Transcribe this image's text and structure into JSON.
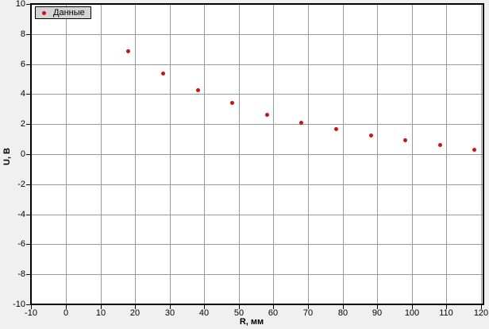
{
  "colors": {
    "page_bg": "#f0f0f0",
    "plot_bg": "#ffffff",
    "frame": "#000000",
    "grid": "#9b9b9b",
    "tick": "#000000",
    "text": "#000000",
    "legend_bg": "#d4d4d4",
    "marker": "#c81414"
  },
  "legend": {
    "label": "Данные",
    "marker_icon": "red-dot-icon"
  },
  "chart_data": {
    "type": "scatter",
    "title": "",
    "xlabel": "R, мм",
    "ylabel": "U, В",
    "xlim": [
      -10,
      120
    ],
    "ylim": [
      -10,
      10
    ],
    "x_ticks": [
      -10,
      0,
      10,
      20,
      30,
      40,
      50,
      60,
      70,
      80,
      90,
      100,
      110,
      120
    ],
    "y_ticks": [
      10,
      8,
      6,
      4,
      2,
      0,
      -2,
      -4,
      -6,
      -8,
      -10
    ],
    "grid": true,
    "legend_position": "top-left",
    "series": [
      {
        "name": "Данные",
        "marker": "circle",
        "color": "#c81414",
        "points": [
          {
            "x": 18,
            "y": 6.9
          },
          {
            "x": 28,
            "y": 5.4
          },
          {
            "x": 38,
            "y": 4.3
          },
          {
            "x": 48,
            "y": 3.45
          },
          {
            "x": 58,
            "y": 2.65
          },
          {
            "x": 68,
            "y": 2.1
          },
          {
            "x": 78,
            "y": 1.7
          },
          {
            "x": 88,
            "y": 1.25
          },
          {
            "x": 98,
            "y": 0.95
          },
          {
            "x": 108,
            "y": 0.65
          },
          {
            "x": 118,
            "y": 0.3
          }
        ]
      }
    ]
  }
}
